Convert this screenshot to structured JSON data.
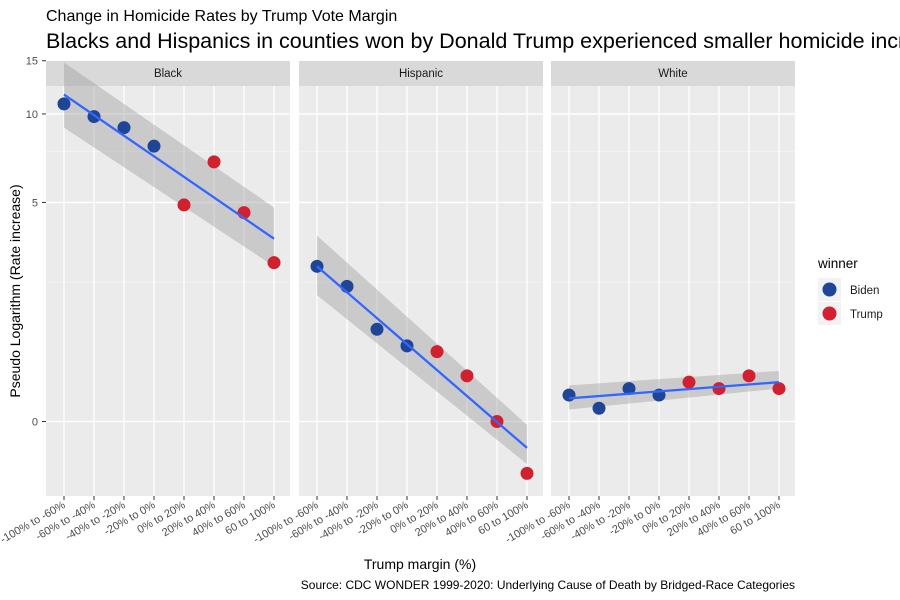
{
  "chart_data": {
    "type": "scatter",
    "title": "Blacks and Hispanics in counties won by Donald Trump experienced smaller homicide increases",
    "subtitle": "Change in Homicide Rates by Trump Vote Margin",
    "xlabel": "Trump margin (%)",
    "ylabel": "Pseudo Logarithm (Rate increase)",
    "caption": "Source: CDC WONDER 1999-2020: Underlying Cause of Death by Bridged-Race Categories",
    "y_scale": "pseudo_log",
    "yticks": [
      0,
      5,
      10,
      15
    ],
    "categories": [
      "-100% to -60%",
      "-60% to -40%",
      "-40% to -20%",
      "-20% to 0%",
      "0% to 20%",
      "20% to 40%",
      "40% to 60%",
      "60 to 100%"
    ],
    "legend": {
      "title": "winner",
      "position": "right",
      "entries": [
        {
          "label": "Biden",
          "color": "#1f4597"
        },
        {
          "label": "Trump",
          "color": "#d1202f"
        }
      ]
    },
    "panels": [
      {
        "name": "Black",
        "points": [
          {
            "x": "-100% to -60%",
            "y": 10.8,
            "winner": "Biden"
          },
          {
            "x": "-60% to -40%",
            "y": 9.8,
            "winner": "Biden"
          },
          {
            "x": "-40% to -20%",
            "y": 9.0,
            "winner": "Biden"
          },
          {
            "x": "-20% to 0%",
            "y": 7.8,
            "winner": "Biden"
          },
          {
            "x": "0% to 20%",
            "y": 4.9,
            "winner": "Trump"
          },
          {
            "x": "20% to 40%",
            "y": 6.9,
            "winner": "Trump"
          },
          {
            "x": "40% to 60%",
            "y": 4.6,
            "winner": "Trump"
          },
          {
            "x": "60 to 100%",
            "y": 3.0,
            "winner": "Trump"
          }
        ],
        "trend": {
          "start": 11.6,
          "end": 3.7
        },
        "band": {
          "start_lower": 9.0,
          "start_upper": 14.8,
          "end_lower": 2.9,
          "end_upper": 4.8
        }
      },
      {
        "name": "Hispanic",
        "points": [
          {
            "x": "-100% to -60%",
            "y": 2.9,
            "winner": "Biden"
          },
          {
            "x": "-60% to -40%",
            "y": 2.4,
            "winner": "Biden"
          },
          {
            "x": "-40% to -20%",
            "y": 1.5,
            "winner": "Biden"
          },
          {
            "x": "-20% to 0%",
            "y": 1.2,
            "winner": "Biden"
          },
          {
            "x": "0% to 20%",
            "y": 1.1,
            "winner": "Trump"
          },
          {
            "x": "20% to 40%",
            "y": 0.7,
            "winner": "Trump"
          },
          {
            "x": "40% to 60%",
            "y": 0.0,
            "winner": "Trump"
          },
          {
            "x": "60 to 100%",
            "y": -0.8,
            "winner": "Trump"
          }
        ],
        "trend": {
          "start": 2.9,
          "end": -0.4
        },
        "band": {
          "start_lower": 2.2,
          "start_upper": 3.8,
          "end_lower": -0.65,
          "end_upper": -0.05
        }
      },
      {
        "name": "White",
        "points": [
          {
            "x": "-100% to -60%",
            "y": 0.4,
            "winner": "Biden"
          },
          {
            "x": "-60% to -40%",
            "y": 0.2,
            "winner": "Biden"
          },
          {
            "x": "-40% to -20%",
            "y": 0.5,
            "winner": "Biden"
          },
          {
            "x": "-20% to 0%",
            "y": 0.4,
            "winner": "Biden"
          },
          {
            "x": "0% to 20%",
            "y": 0.6,
            "winner": "Trump"
          },
          {
            "x": "20% to 40%",
            "y": 0.5,
            "winner": "Trump"
          },
          {
            "x": "40% to 60%",
            "y": 0.7,
            "winner": "Trump"
          },
          {
            "x": "60 to 100%",
            "y": 0.5,
            "winner": "Trump"
          }
        ],
        "trend": {
          "start": 0.35,
          "end": 0.6
        },
        "band": {
          "start_lower": 0.18,
          "start_upper": 0.55,
          "end_lower": 0.5,
          "end_upper": 0.78
        }
      }
    ]
  }
}
